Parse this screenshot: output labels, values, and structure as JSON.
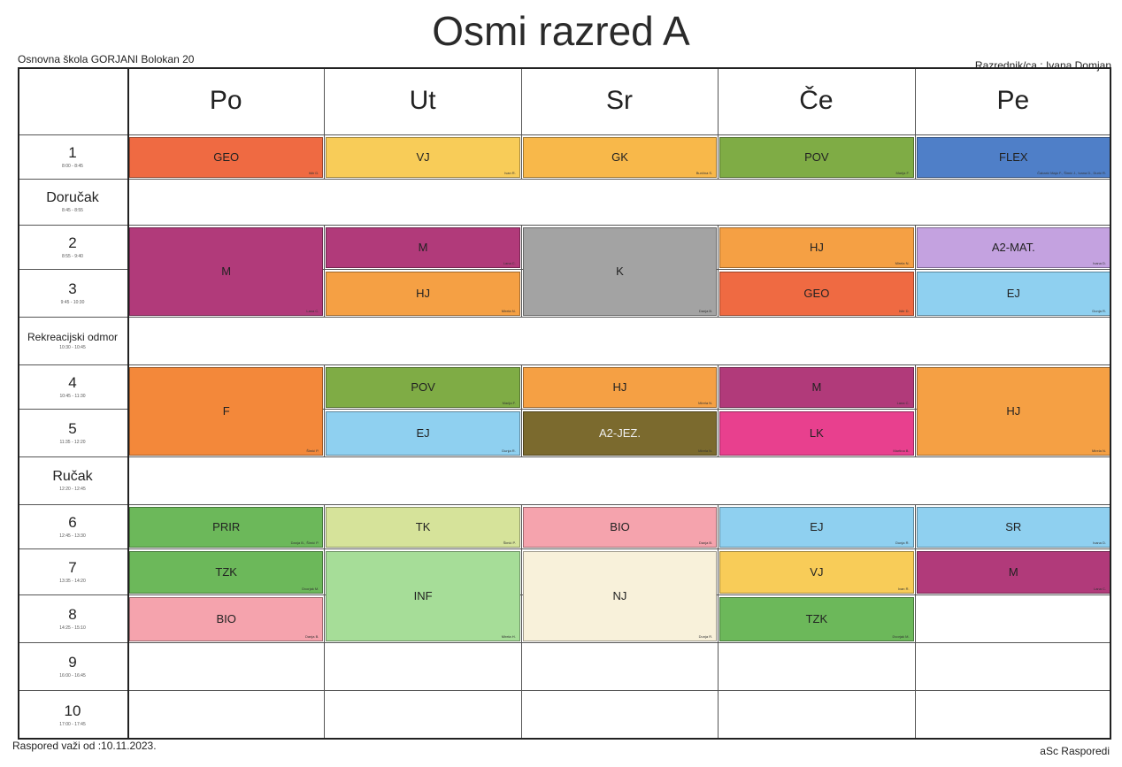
{
  "header": {
    "title": "Osmi razred A",
    "school": "Osnovna škola GORJANI  Bolokan 20",
    "homeroom": "Razrednik/ca : Ivana Domjan"
  },
  "footer": {
    "validity": "Raspored važi od :10.11.2023.",
    "software": "aSc Rasporedi"
  },
  "days": [
    "Po",
    "Ut",
    "Sr",
    "Če",
    "Pe"
  ],
  "rows": [
    {
      "num": "1",
      "time": "8:00 - 8:45"
    },
    {
      "label": "Doručak",
      "time": "8:45 - 8:55"
    },
    {
      "num": "2",
      "time": "8:55 - 9:40"
    },
    {
      "num": "3",
      "time": "9:45 - 10:30"
    },
    {
      "label": "Rekreacijski odmor",
      "time": "10:30 - 10:45"
    },
    {
      "num": "4",
      "time": "10:45 - 11:30"
    },
    {
      "num": "5",
      "time": "11:35 - 12:20"
    },
    {
      "label": "Ručak",
      "time": "12:20 - 12:45"
    },
    {
      "num": "6",
      "time": "12:45 - 13:30"
    },
    {
      "num": "7",
      "time": "13:35 - 14:20"
    },
    {
      "num": "8",
      "time": "14:25 - 15:10"
    },
    {
      "num": "9",
      "time": "16:00 - 16:45"
    },
    {
      "num": "10",
      "time": "17:00 - 17:45"
    }
  ],
  "lessons": [
    {
      "day": 0,
      "row": 0,
      "span": 1,
      "subject": "GEO",
      "teacher": "Ištir D.",
      "color": "#ef6a42"
    },
    {
      "day": 1,
      "row": 0,
      "span": 1,
      "subject": "VJ",
      "teacher": "Ivan R.",
      "color": "#f8cc58"
    },
    {
      "day": 2,
      "row": 0,
      "span": 1,
      "subject": "GK",
      "teacher": "Burčina S.",
      "color": "#f8b84a"
    },
    {
      "day": 3,
      "row": 0,
      "span": 1,
      "subject": "POV",
      "teacher": "Marija F.",
      "color": "#7fac45"
    },
    {
      "day": 4,
      "row": 0,
      "span": 1,
      "subject": "FLEX",
      "teacher": "Čabarić Maja F., Šimić J., Ivana D., Durić R.",
      "color": "#4f7fc8"
    },
    {
      "day": 0,
      "row": 2,
      "span": 2,
      "subject": "M",
      "teacher": "Lana C.",
      "color": "#b13a7a"
    },
    {
      "day": 1,
      "row": 2,
      "span": 1,
      "subject": "M",
      "teacher": "Lana C.",
      "color": "#b13a7a"
    },
    {
      "day": 1,
      "row": 3,
      "span": 1,
      "subject": "HJ",
      "teacher": "Mirela N.",
      "color": "#f5a044"
    },
    {
      "day": 2,
      "row": 2,
      "span": 2,
      "subject": "K",
      "teacher": "Danja B.",
      "color": "#a3a3a3"
    },
    {
      "day": 3,
      "row": 2,
      "span": 1,
      "subject": "HJ",
      "teacher": "Mirela N.",
      "color": "#f5a044"
    },
    {
      "day": 3,
      "row": 3,
      "span": 1,
      "subject": "GEO",
      "teacher": "Ištir D.",
      "color": "#ef6a42"
    },
    {
      "day": 4,
      "row": 2,
      "span": 1,
      "subject": "A2-MAT.",
      "teacher": "Ivana D.",
      "color": "#c4a2e0"
    },
    {
      "day": 4,
      "row": 3,
      "span": 1,
      "subject": "EJ",
      "teacher": "Dunja R.",
      "color": "#8fd0f0"
    },
    {
      "day": 0,
      "row": 5,
      "span": 2,
      "subject": "F",
      "teacher": "Šimić P.",
      "color": "#f3883a"
    },
    {
      "day": 1,
      "row": 5,
      "span": 1,
      "subject": "POV",
      "teacher": "Marija F.",
      "color": "#7fac45"
    },
    {
      "day": 1,
      "row": 6,
      "span": 1,
      "subject": "EJ",
      "teacher": "Dunja R.",
      "color": "#8fd0f0"
    },
    {
      "day": 2,
      "row": 5,
      "span": 1,
      "subject": "HJ",
      "teacher": "Mirela N.",
      "color": "#f5a044"
    },
    {
      "day": 2,
      "row": 6,
      "span": 1,
      "subject": "A2-JEZ.",
      "teacher": "Mirela N.",
      "color": "#7b6a2e"
    },
    {
      "day": 3,
      "row": 5,
      "span": 1,
      "subject": "M",
      "teacher": "Lana C.",
      "color": "#b13a7a"
    },
    {
      "day": 3,
      "row": 6,
      "span": 1,
      "subject": "LK",
      "teacher": "Martina B.",
      "color": "#e8408e"
    },
    {
      "day": 4,
      "row": 5,
      "span": 2,
      "subject": "HJ",
      "teacher": "Mirela N.",
      "color": "#f5a044"
    },
    {
      "day": 0,
      "row": 8,
      "span": 1,
      "subject": "PRIR",
      "teacher": "Danja B., Šimić P.",
      "color": "#6cb85a"
    },
    {
      "day": 0,
      "row": 9,
      "span": 1,
      "subject": "TZK",
      "teacher": "Dvorjak M.",
      "color": "#6cb85a"
    },
    {
      "day": 0,
      "row": 10,
      "span": 1,
      "subject": "BIO",
      "teacher": "Danja B.",
      "color": "#f5a3ad"
    },
    {
      "day": 1,
      "row": 8,
      "span": 1,
      "subject": "TK",
      "teacher": "Šimić P.",
      "color": "#d6e39a"
    },
    {
      "day": 1,
      "row": 9,
      "span": 2,
      "subject": "INF",
      "teacher": "Mirela H.",
      "color": "#a6dd98"
    },
    {
      "day": 2,
      "row": 8,
      "span": 1,
      "subject": "BIO",
      "teacher": "Danja B.",
      "color": "#f5a3ad"
    },
    {
      "day": 2,
      "row": 9,
      "span": 2,
      "subject": "NJ",
      "teacher": "Dunja R.",
      "color": "#f8f1da"
    },
    {
      "day": 3,
      "row": 8,
      "span": 1,
      "subject": "EJ",
      "teacher": "Dunja R.",
      "color": "#8fd0f0"
    },
    {
      "day": 3,
      "row": 9,
      "span": 1,
      "subject": "VJ",
      "teacher": "Ivan R.",
      "color": "#f8cc58"
    },
    {
      "day": 3,
      "row": 10,
      "span": 1,
      "subject": "TZK",
      "teacher": "Dvorjak M.",
      "color": "#6cb85a"
    },
    {
      "day": 4,
      "row": 8,
      "span": 1,
      "subject": "SR",
      "teacher": "Ivana D.",
      "color": "#8fd0f0"
    },
    {
      "day": 4,
      "row": 9,
      "span": 1,
      "subject": "M",
      "teacher": "Lana C.",
      "color": "#b13a7a"
    }
  ]
}
